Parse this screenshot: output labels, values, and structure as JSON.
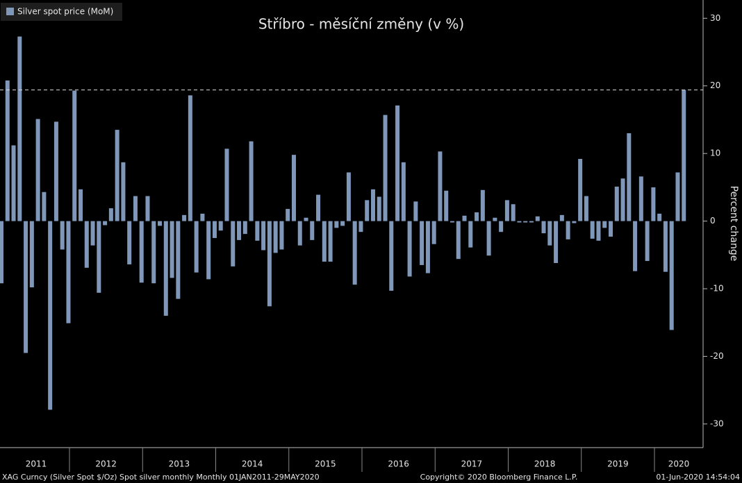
{
  "chart_data": {
    "type": "bar",
    "title": "Stříbro - měsíční změny (v %)",
    "legend": "Silver spot price (MoM)",
    "ylabel": "Percent change",
    "color": "#7f97b8",
    "years": [
      "2011",
      "2012",
      "2013",
      "2014",
      "2015",
      "2016",
      "2017",
      "2018",
      "2019",
      "2020"
    ],
    "values": [
      -9.2,
      20.8,
      11.2,
      27.3,
      -19.5,
      -9.8,
      15.1,
      4.3,
      -27.9,
      14.7,
      -4.2,
      -15.1,
      19.3,
      4.7,
      -6.9,
      -3.6,
      -10.6,
      -0.6,
      1.9,
      13.5,
      8.7,
      -6.4,
      3.7,
      -9.1,
      3.7,
      -9.2,
      -0.7,
      -14.0,
      -8.4,
      -11.5,
      0.9,
      18.6,
      -7.6,
      1.1,
      -8.6,
      -2.5,
      -1.4,
      10.7,
      -6.7,
      -2.8,
      -1.9,
      11.8,
      -2.9,
      -4.3,
      -12.6,
      -4.7,
      -4.2,
      1.8,
      9.8,
      -3.6,
      0.5,
      -2.8,
      3.9,
      -6.0,
      -6.0,
      -1.0,
      -0.7,
      7.2,
      -9.4,
      -1.6,
      3.1,
      4.7,
      3.6,
      15.7,
      -10.3,
      17.1,
      8.7,
      -8.2,
      2.9,
      -6.5,
      -7.7,
      -3.4,
      10.3,
      4.5,
      -0.2,
      -5.6,
      0.8,
      -3.9,
      1.3,
      4.6,
      -5.1,
      0.5,
      -1.6,
      3.1,
      2.5,
      -0.2,
      -0.2,
      -0.2,
      0.7,
      -1.8,
      -3.6,
      -6.2,
      0.9,
      -2.7,
      -0.3,
      9.2,
      3.7,
      -2.6,
      -2.9,
      -1.0,
      -2.3,
      5.1,
      6.3,
      13.0,
      -7.4,
      6.6,
      -5.9,
      5.0,
      1.1,
      -7.5,
      -16.1,
      7.2,
      19.4
    ],
    "hline": 19.4,
    "ylim": [
      -33.5,
      32.7
    ],
    "yticks": [
      -30,
      -20,
      -10,
      0,
      10,
      20,
      30
    ],
    "footer": {
      "left": "XAG Curncy (Silver Spot  $/Oz) Spot silver monthly  Monthly 01JAN2011-29MAY2020",
      "center": "Copyright© 2020 Bloomberg Finance L.P.",
      "right": "01-Jun-2020 14:54:04"
    }
  }
}
